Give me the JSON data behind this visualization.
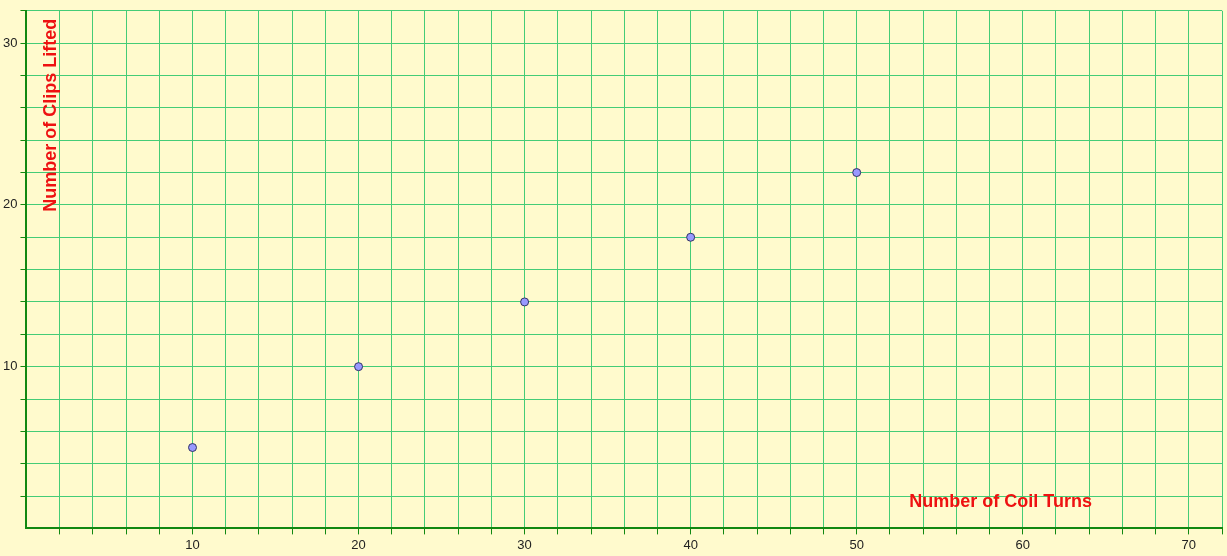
{
  "chart_data": {
    "type": "scatter",
    "xlabel": "Number of Coil Turns",
    "ylabel": "Number of Clips Lifted",
    "x": [
      10,
      20,
      30,
      40,
      50
    ],
    "series": [
      {
        "color": "#9999ff",
        "values": [
          5,
          10,
          14,
          18,
          22
        ]
      }
    ],
    "xlim": [
      0,
      72
    ],
    "ylim": [
      0,
      32
    ],
    "xticks": [
      {
        "value": 2,
        "label": null
      },
      {
        "value": 4,
        "label": null
      },
      {
        "value": 6,
        "label": null
      },
      {
        "value": 8,
        "label": null
      },
      10,
      {
        "value": 12,
        "label": null
      },
      {
        "value": 14,
        "label": null
      },
      {
        "value": 16,
        "label": null
      },
      {
        "value": 18,
        "label": null
      },
      20,
      {
        "value": 22,
        "label": null
      },
      {
        "value": 24,
        "label": null
      },
      {
        "value": 26,
        "label": null
      },
      {
        "value": 28,
        "label": null
      },
      30,
      {
        "value": 32,
        "label": null
      },
      {
        "value": 34,
        "label": null
      },
      {
        "value": 36,
        "label": null
      },
      {
        "value": 38,
        "label": null
      },
      40,
      {
        "value": 42,
        "label": null
      },
      {
        "value": 44,
        "label": null
      },
      {
        "value": 46,
        "label": null
      },
      {
        "value": 48,
        "label": null
      },
      50,
      {
        "value": 52,
        "label": null
      },
      {
        "value": 54,
        "label": null
      },
      {
        "value": 56,
        "label": null
      },
      {
        "value": 58,
        "label": null
      },
      60,
      {
        "value": 62,
        "label": null
      },
      {
        "value": 64,
        "label": null
      },
      {
        "value": 66,
        "label": null
      },
      {
        "value": 68,
        "label": null
      },
      70,
      {
        "value": 72,
        "label": null
      }
    ],
    "yticks": [
      {
        "value": 2,
        "label": null
      },
      {
        "value": 4,
        "label": null
      },
      {
        "value": 6,
        "label": null
      },
      {
        "value": 8,
        "label": null
      },
      10,
      {
        "value": 12,
        "label": null
      },
      {
        "value": 14,
        "label": null
      },
      {
        "value": 16,
        "label": null
      },
      {
        "value": 18,
        "label": null
      },
      20,
      {
        "value": 22,
        "label": null
      },
      {
        "value": 24,
        "label": null
      },
      {
        "value": 26,
        "label": null
      },
      {
        "value": 28,
        "label": null
      },
      30,
      {
        "value": 32,
        "label": null
      }
    ],
    "grid": true,
    "marker": "circle",
    "legend": false
  }
}
